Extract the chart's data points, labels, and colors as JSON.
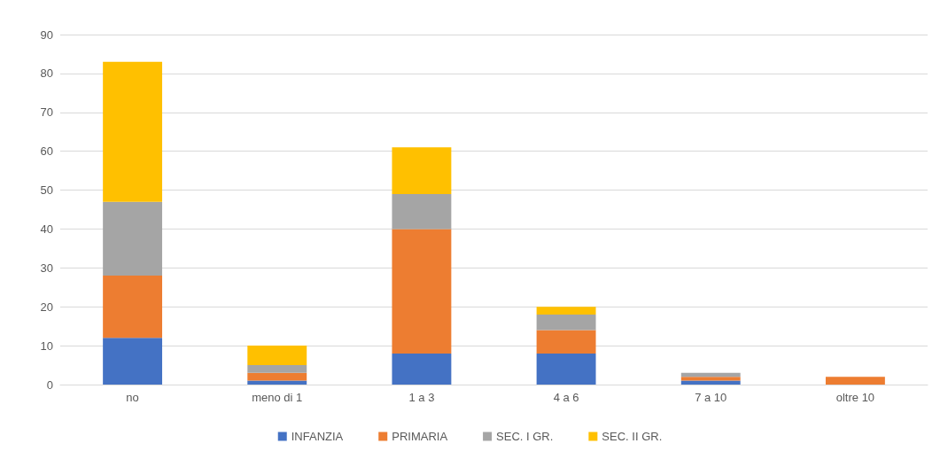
{
  "chart_data": {
    "type": "bar",
    "stacked": true,
    "categories": [
      "no",
      "meno di 1",
      "1 a 3",
      "4 a 6",
      "7 a 10",
      "oltre 10"
    ],
    "series": [
      {
        "name": "INFANZIA",
        "color": "#4472c4",
        "values": [
          12,
          1,
          8,
          8,
          1,
          0
        ]
      },
      {
        "name": "PRIMARIA",
        "color": "#ed7d31",
        "values": [
          16,
          2,
          32,
          6,
          1,
          2
        ]
      },
      {
        "name": "SEC. I GR.",
        "color": "#a5a5a5",
        "values": [
          19,
          2,
          9,
          4,
          1,
          0
        ]
      },
      {
        "name": "SEC. II GR.",
        "color": "#ffc000",
        "values": [
          36,
          5,
          12,
          2,
          0,
          0
        ]
      }
    ],
    "ylim": [
      0,
      90
    ],
    "yticks": [
      0,
      10,
      20,
      30,
      40,
      50,
      60,
      70,
      80,
      90
    ],
    "grid": "y",
    "legend": "bottom"
  }
}
